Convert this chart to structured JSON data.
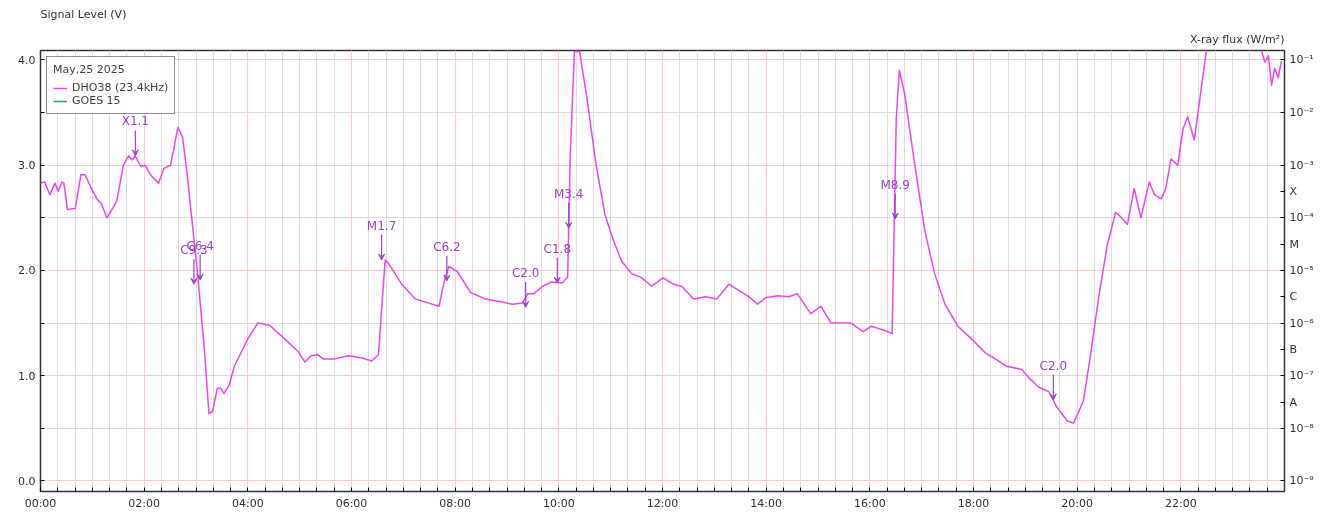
{
  "chart_data": {
    "type": "line",
    "ylabel": "Signal Level (V)",
    "y2label": "X-ray flux (W/m²)",
    "legend_title": "May,25 2025",
    "legend": "top left",
    "grid": true,
    "log": "y2",
    "line_style": "solid",
    "x": [
      0,
      0.08,
      0.18,
      0.28,
      0.34,
      0.41,
      0.45,
      0.52,
      0.67,
      0.78,
      0.86,
      0.99,
      1.09,
      1.18,
      1.28,
      1.38,
      1.47,
      1.6,
      1.7,
      1.77,
      1.83,
      1.93,
      2.02,
      2.12,
      2.28,
      2.38,
      2.51,
      2.57,
      2.65,
      2.74,
      2.83,
      2.93,
      3.03,
      3.16,
      3.25,
      3.32,
      3.41,
      3.48,
      3.54,
      3.64,
      3.74,
      4.0,
      4.19,
      4.42,
      4.71,
      4.97,
      5.1,
      5.22,
      5.35,
      5.45,
      5.68,
      5.94,
      6.19,
      6.39,
      6.52,
      6.58,
      6.65,
      6.71,
      6.97,
      7.23,
      7.49,
      7.69,
      7.78,
      7.88,
      8.04,
      8.3,
      8.58,
      8.91,
      9.1,
      9.3,
      9.4,
      9.52,
      9.69,
      9.85,
      10.07,
      10.17,
      10.22,
      10.3,
      10.4,
      10.53,
      10.72,
      10.89,
      11.05,
      11.21,
      11.4,
      11.6,
      11.79,
      12.01,
      12.21,
      12.37,
      12.6,
      12.83,
      13.05,
      13.28,
      13.47,
      13.67,
      13.83,
      13.99,
      14.22,
      14.44,
      14.6,
      14.86,
      15.06,
      15.25,
      15.64,
      15.87,
      16.03,
      16.29,
      16.43,
      16.51,
      16.57,
      16.67,
      16.86,
      17.06,
      17.25,
      17.45,
      17.7,
      17.96,
      18.22,
      18.42,
      18.64,
      18.93,
      19.09,
      19.26,
      19.45,
      19.61,
      19.81,
      19.93,
      20.12,
      20.25,
      20.42,
      20.58,
      20.74,
      20.8,
      20.97,
      21.1,
      21.23,
      21.39,
      21.49,
      21.62,
      21.71,
      21.81,
      21.94,
      22.04,
      22.13,
      22.26,
      22.49,
      23.0,
      23.56,
      23.62,
      23.69,
      23.75,
      23.81,
      23.88,
      23.94
    ],
    "series": [
      {
        "name": "DHO38 (23.4kHz)",
        "color": "#ee44ee",
        "values": [
          2.83,
          2.84,
          2.72,
          2.83,
          2.75,
          2.84,
          2.83,
          2.58,
          2.59,
          2.91,
          2.91,
          2.77,
          2.68,
          2.63,
          2.5,
          2.58,
          2.66,
          3.0,
          3.09,
          3.05,
          3.09,
          2.99,
          3.0,
          2.91,
          2.83,
          2.97,
          3.0,
          3.15,
          3.36,
          3.27,
          2.91,
          2.44,
          1.97,
          1.26,
          0.64,
          0.66,
          0.88,
          0.88,
          0.83,
          0.91,
          1.09,
          1.35,
          1.5,
          1.48,
          1.35,
          1.23,
          1.13,
          1.19,
          1.2,
          1.16,
          1.16,
          1.19,
          1.17,
          1.14,
          1.2,
          1.62,
          2.1,
          2.07,
          1.87,
          1.73,
          1.69,
          1.66,
          1.88,
          2.04,
          1.99,
          1.79,
          1.73,
          1.7,
          1.68,
          1.69,
          1.78,
          1.78,
          1.85,
          1.89,
          1.88,
          1.94,
          3.09,
          4.08,
          4.08,
          3.68,
          3.0,
          2.53,
          2.29,
          2.09,
          1.97,
          1.93,
          1.85,
          1.93,
          1.87,
          1.85,
          1.73,
          1.75,
          1.73,
          1.87,
          1.81,
          1.75,
          1.68,
          1.74,
          1.76,
          1.75,
          1.78,
          1.59,
          1.66,
          1.5,
          1.5,
          1.42,
          1.47,
          1.43,
          1.4,
          3.45,
          3.9,
          3.68,
          3.03,
          2.38,
          1.97,
          1.68,
          1.47,
          1.35,
          1.22,
          1.16,
          1.09,
          1.06,
          0.97,
          0.89,
          0.85,
          0.7,
          0.57,
          0.55,
          0.76,
          1.17,
          1.76,
          2.24,
          2.55,
          2.53,
          2.44,
          2.78,
          2.5,
          2.84,
          2.72,
          2.68,
          2.78,
          3.06,
          3.0,
          3.34,
          3.46,
          3.24,
          4.08,
          null,
          4.08,
          3.98,
          4.04,
          3.76,
          3.92,
          3.83,
          3.99
        ]
      },
      {
        "name": "GOES 15",
        "color": "#339999",
        "values": [
          null,
          null,
          null,
          null,
          null,
          null,
          null,
          null,
          null,
          null,
          null,
          null,
          null,
          null,
          null,
          null,
          null,
          null,
          null,
          null,
          null,
          null,
          null,
          null,
          null,
          null,
          null,
          null,
          null,
          null,
          null,
          null,
          null,
          null,
          null,
          null,
          null,
          null,
          null,
          null,
          null,
          null,
          null,
          null,
          null,
          null,
          null,
          null,
          null,
          null,
          null,
          null,
          null,
          null,
          null,
          null,
          null,
          null,
          null,
          null,
          null,
          null,
          null,
          null,
          null,
          null,
          null,
          null,
          null,
          null,
          null,
          null,
          null,
          null,
          null,
          null,
          null,
          null,
          null,
          null,
          null,
          null,
          null,
          null,
          null,
          null,
          null,
          null,
          null,
          null,
          null,
          null,
          null,
          null,
          null,
          null,
          null,
          null,
          null,
          null,
          null,
          null,
          null,
          null,
          null,
          null,
          null,
          null,
          null,
          null,
          null,
          null,
          null,
          null,
          null,
          null,
          null,
          null,
          null,
          null,
          null,
          null,
          null,
          null,
          null,
          null,
          null,
          null,
          null,
          null,
          null,
          null,
          null,
          null,
          null,
          null,
          null,
          null,
          null,
          null,
          null,
          null,
          null,
          null,
          null,
          null,
          null,
          null,
          null,
          null,
          null,
          null,
          null,
          null,
          null
        ]
      }
    ],
    "xlim": [
      0,
      24
    ],
    "xticks": [
      {
        "value": 0,
        "label": "00:00"
      },
      {
        "value": 0.3333,
        "label": null
      },
      {
        "value": 0.6667,
        "label": null
      },
      {
        "value": 1,
        "label": null
      },
      {
        "value": 1.3333,
        "label": null
      },
      {
        "value": 1.6667,
        "label": null
      },
      {
        "value": 2,
        "label": "02:00"
      },
      {
        "value": 2.3333,
        "label": null
      },
      {
        "value": 2.6667,
        "label": null
      },
      {
        "value": 3,
        "label": null
      },
      {
        "value": 3.3333,
        "label": null
      },
      {
        "value": 3.6667,
        "label": null
      },
      {
        "value": 4,
        "label": "04:00"
      },
      {
        "value": 4.3333,
        "label": null
      },
      {
        "value": 4.6667,
        "label": null
      },
      {
        "value": 5,
        "label": null
      },
      {
        "value": 5.3333,
        "label": null
      },
      {
        "value": 5.6667,
        "label": null
      },
      {
        "value": 6,
        "label": "06:00"
      },
      {
        "value": 6.3333,
        "label": null
      },
      {
        "value": 6.6667,
        "label": null
      },
      {
        "value": 7,
        "label": null
      },
      {
        "value": 7.3333,
        "label": null
      },
      {
        "value": 7.6667,
        "label": null
      },
      {
        "value": 8,
        "label": "08:00"
      },
      {
        "value": 8.3333,
        "label": null
      },
      {
        "value": 8.6667,
        "label": null
      },
      {
        "value": 9,
        "label": null
      },
      {
        "value": 9.3333,
        "label": null
      },
      {
        "value": 9.6667,
        "label": null
      },
      {
        "value": 10,
        "label": "10:00"
      },
      {
        "value": 10.3333,
        "label": null
      },
      {
        "value": 10.6667,
        "label": null
      },
      {
        "value": 11,
        "label": null
      },
      {
        "value": 11.3333,
        "label": null
      },
      {
        "value": 11.6667,
        "label": null
      },
      {
        "value": 12,
        "label": "12:00"
      },
      {
        "value": 12.3333,
        "label": null
      },
      {
        "value": 12.6667,
        "label": null
      },
      {
        "value": 13,
        "label": null
      },
      {
        "value": 13.3333,
        "label": null
      },
      {
        "value": 13.6667,
        "label": null
      },
      {
        "value": 14,
        "label": "14:00"
      },
      {
        "value": 14.3333,
        "label": null
      },
      {
        "value": 14.6667,
        "label": null
      },
      {
        "value": 15,
        "label": null
      },
      {
        "value": 15.3333,
        "label": null
      },
      {
        "value": 15.6667,
        "label": null
      },
      {
        "value": 16,
        "label": "16:00"
      },
      {
        "value": 16.3333,
        "label": null
      },
      {
        "value": 16.6667,
        "label": null
      },
      {
        "value": 17,
        "label": null
      },
      {
        "value": 17.3333,
        "label": null
      },
      {
        "value": 17.6667,
        "label": null
      },
      {
        "value": 18,
        "label": "18:00"
      },
      {
        "value": 18.3333,
        "label": null
      },
      {
        "value": 18.6667,
        "label": null
      },
      {
        "value": 19,
        "label": null
      },
      {
        "value": 19.3333,
        "label": null
      },
      {
        "value": 19.6667,
        "label": null
      },
      {
        "value": 20,
        "label": "20:00"
      },
      {
        "value": 20.3333,
        "label": null
      },
      {
        "value": 20.6667,
        "label": null
      },
      {
        "value": 21,
        "label": null
      },
      {
        "value": 21.3333,
        "label": null
      },
      {
        "value": 21.6667,
        "label": null
      },
      {
        "value": 22,
        "label": "22:00"
      },
      {
        "value": 22.3333,
        "label": null
      },
      {
        "value": 22.6667,
        "label": null
      },
      {
        "value": 23,
        "label": null
      },
      {
        "value": 23.3333,
        "label": null
      },
      {
        "value": 23.6667,
        "label": null
      }
    ],
    "ylim": [
      -0.1,
      4.09
    ],
    "yticks": [
      {
        "value": 0,
        "label": "0.0"
      },
      {
        "value": 0.5,
        "label": null
      },
      {
        "value": 1,
        "label": "1.0"
      },
      {
        "value": 1.5,
        "label": null
      },
      {
        "value": 2,
        "label": "2.0"
      },
      {
        "value": 2.5,
        "label": null
      },
      {
        "value": 3,
        "label": "3.0"
      },
      {
        "value": 3.5,
        "label": null
      },
      {
        "value": 4,
        "label": "4.0"
      }
    ],
    "y2lim": [
      6.31e-10,
      0.151
    ],
    "y2ticks": [
      {
        "value": 1e-09,
        "label": "10⁻⁹"
      },
      {
        "value": 1e-08,
        "label": "10⁻⁸"
      },
      {
        "value": 3.162e-08,
        "label": "A"
      },
      {
        "value": 1e-07,
        "label": "10⁻⁷"
      },
      {
        "value": 3.162e-07,
        "label": "B"
      },
      {
        "value": 1e-06,
        "label": "10⁻⁶"
      },
      {
        "value": 3.162e-06,
        "label": "C"
      },
      {
        "value": 1e-05,
        "label": "10⁻⁵"
      },
      {
        "value": 3.162e-05,
        "label": "M"
      },
      {
        "value": 0.0001,
        "label": "10⁻⁴"
      },
      {
        "value": 0.0003162,
        "label": "X"
      },
      {
        "value": 0.001,
        "label": "10⁻³"
      },
      {
        "value": 0.01,
        "label": "10⁻²"
      },
      {
        "value": 0.1,
        "label": "10⁻¹"
      }
    ],
    "annotations": [
      {
        "text": "X1.1",
        "x": 1.83,
        "y": 3.09
      },
      {
        "text": "C9.3",
        "x": 2.96,
        "y": 1.87
      },
      {
        "text": "C6.4",
        "x": 3.08,
        "y": 1.91
      },
      {
        "text": "M1.7",
        "x": 6.58,
        "y": 2.1
      },
      {
        "text": "C6.2",
        "x": 7.84,
        "y": 1.9
      },
      {
        "text": "C2.0",
        "x": 9.36,
        "y": 1.65
      },
      {
        "text": "C1.8",
        "x": 9.97,
        "y": 1.88
      },
      {
        "text": "M3.4",
        "x": 10.19,
        "y": 2.4
      },
      {
        "text": "M8.9",
        "x": 16.49,
        "y": 2.49
      },
      {
        "text": "C2.0",
        "x": 19.54,
        "y": 0.77
      }
    ]
  }
}
